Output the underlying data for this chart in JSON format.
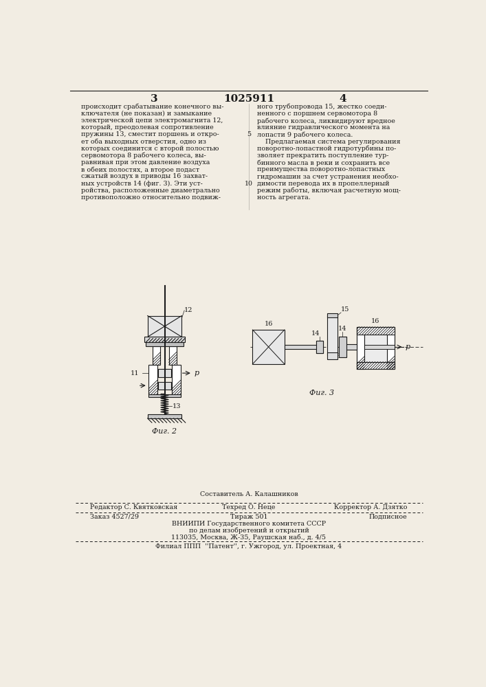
{
  "bg_color": "#f2ede3",
  "text_color": "#1a1a1a",
  "page_number_left": "3",
  "patent_number": "1025911",
  "page_number_right": "4",
  "col_left_lines": [
    "происходит срабатывание конечного вы-",
    "ключателя (не показан) и замыкание",
    "электрической цепи электромагнита 12,",
    "который, преодолевая сопротивление",
    "пружины 13, сместит поршень и откро-",
    "ет оба выходных отверстия, одно из",
    "которых соединится с второй полостью",
    "сервомотора 8 рабочего колеса, вы-",
    "равнивая при этом давление воздуха",
    "в обеих полостях, а второе подаст",
    "сжатый воздух в приводы 16 захват-",
    "ных устройств 14 (фиг. 3). Эти уст-",
    "ройства, расположенные диаметрально",
    "противоположно относительно подвиж-"
  ],
  "line_numbers": {
    "5": 4,
    "10": 11
  },
  "col_right_lines": [
    "ного трубопровода 15, жестко соеди-",
    "ненного с поршнем сервомотора 8",
    "рабочего колеса, ликвидируют вредное",
    "влияние гидравлического момента на",
    "лопасти 9 рабочего колеса.",
    "    Предлагаемая система регулирования",
    "поворотно-лопастной гидротурбины по-",
    "зволяет прекратить поступление тур-",
    "бинного масла в реки и сохранить все",
    "преимущества поворотно-лопастных",
    "гидромашин за счет устранения необхо-",
    "димости перевода их в пропеллерный",
    "режим работы, включая расчетную мощ-",
    "ность агрегата."
  ],
  "fig2_label": "Фиг. 2",
  "fig3_label": "Фиг. 3",
  "composit_label": "Составитель А. Калашников",
  "footer_editor": "Редактор С. Квятковская",
  "footer_techred": "Техред О. Неце",
  "footer_corrector": "Корректор А. Дзятко",
  "footer_order": "Заказ 4527/29",
  "footer_tirazh": "Тираж 501",
  "footer_podpisnoe": "Подписное",
  "footer_vniip1": "ВНИИПИ Государственного комитета СССР",
  "footer_vniip2": "по делам изобретений и открытий",
  "footer_vniip3": "113035, Москва, Ж-35, Раушская наб., д. 4/5",
  "footer_filial": "Филиал ППП  ''Патент'', г. Ужгород, ул. Проектная, 4",
  "dc": "#1a1a1a"
}
